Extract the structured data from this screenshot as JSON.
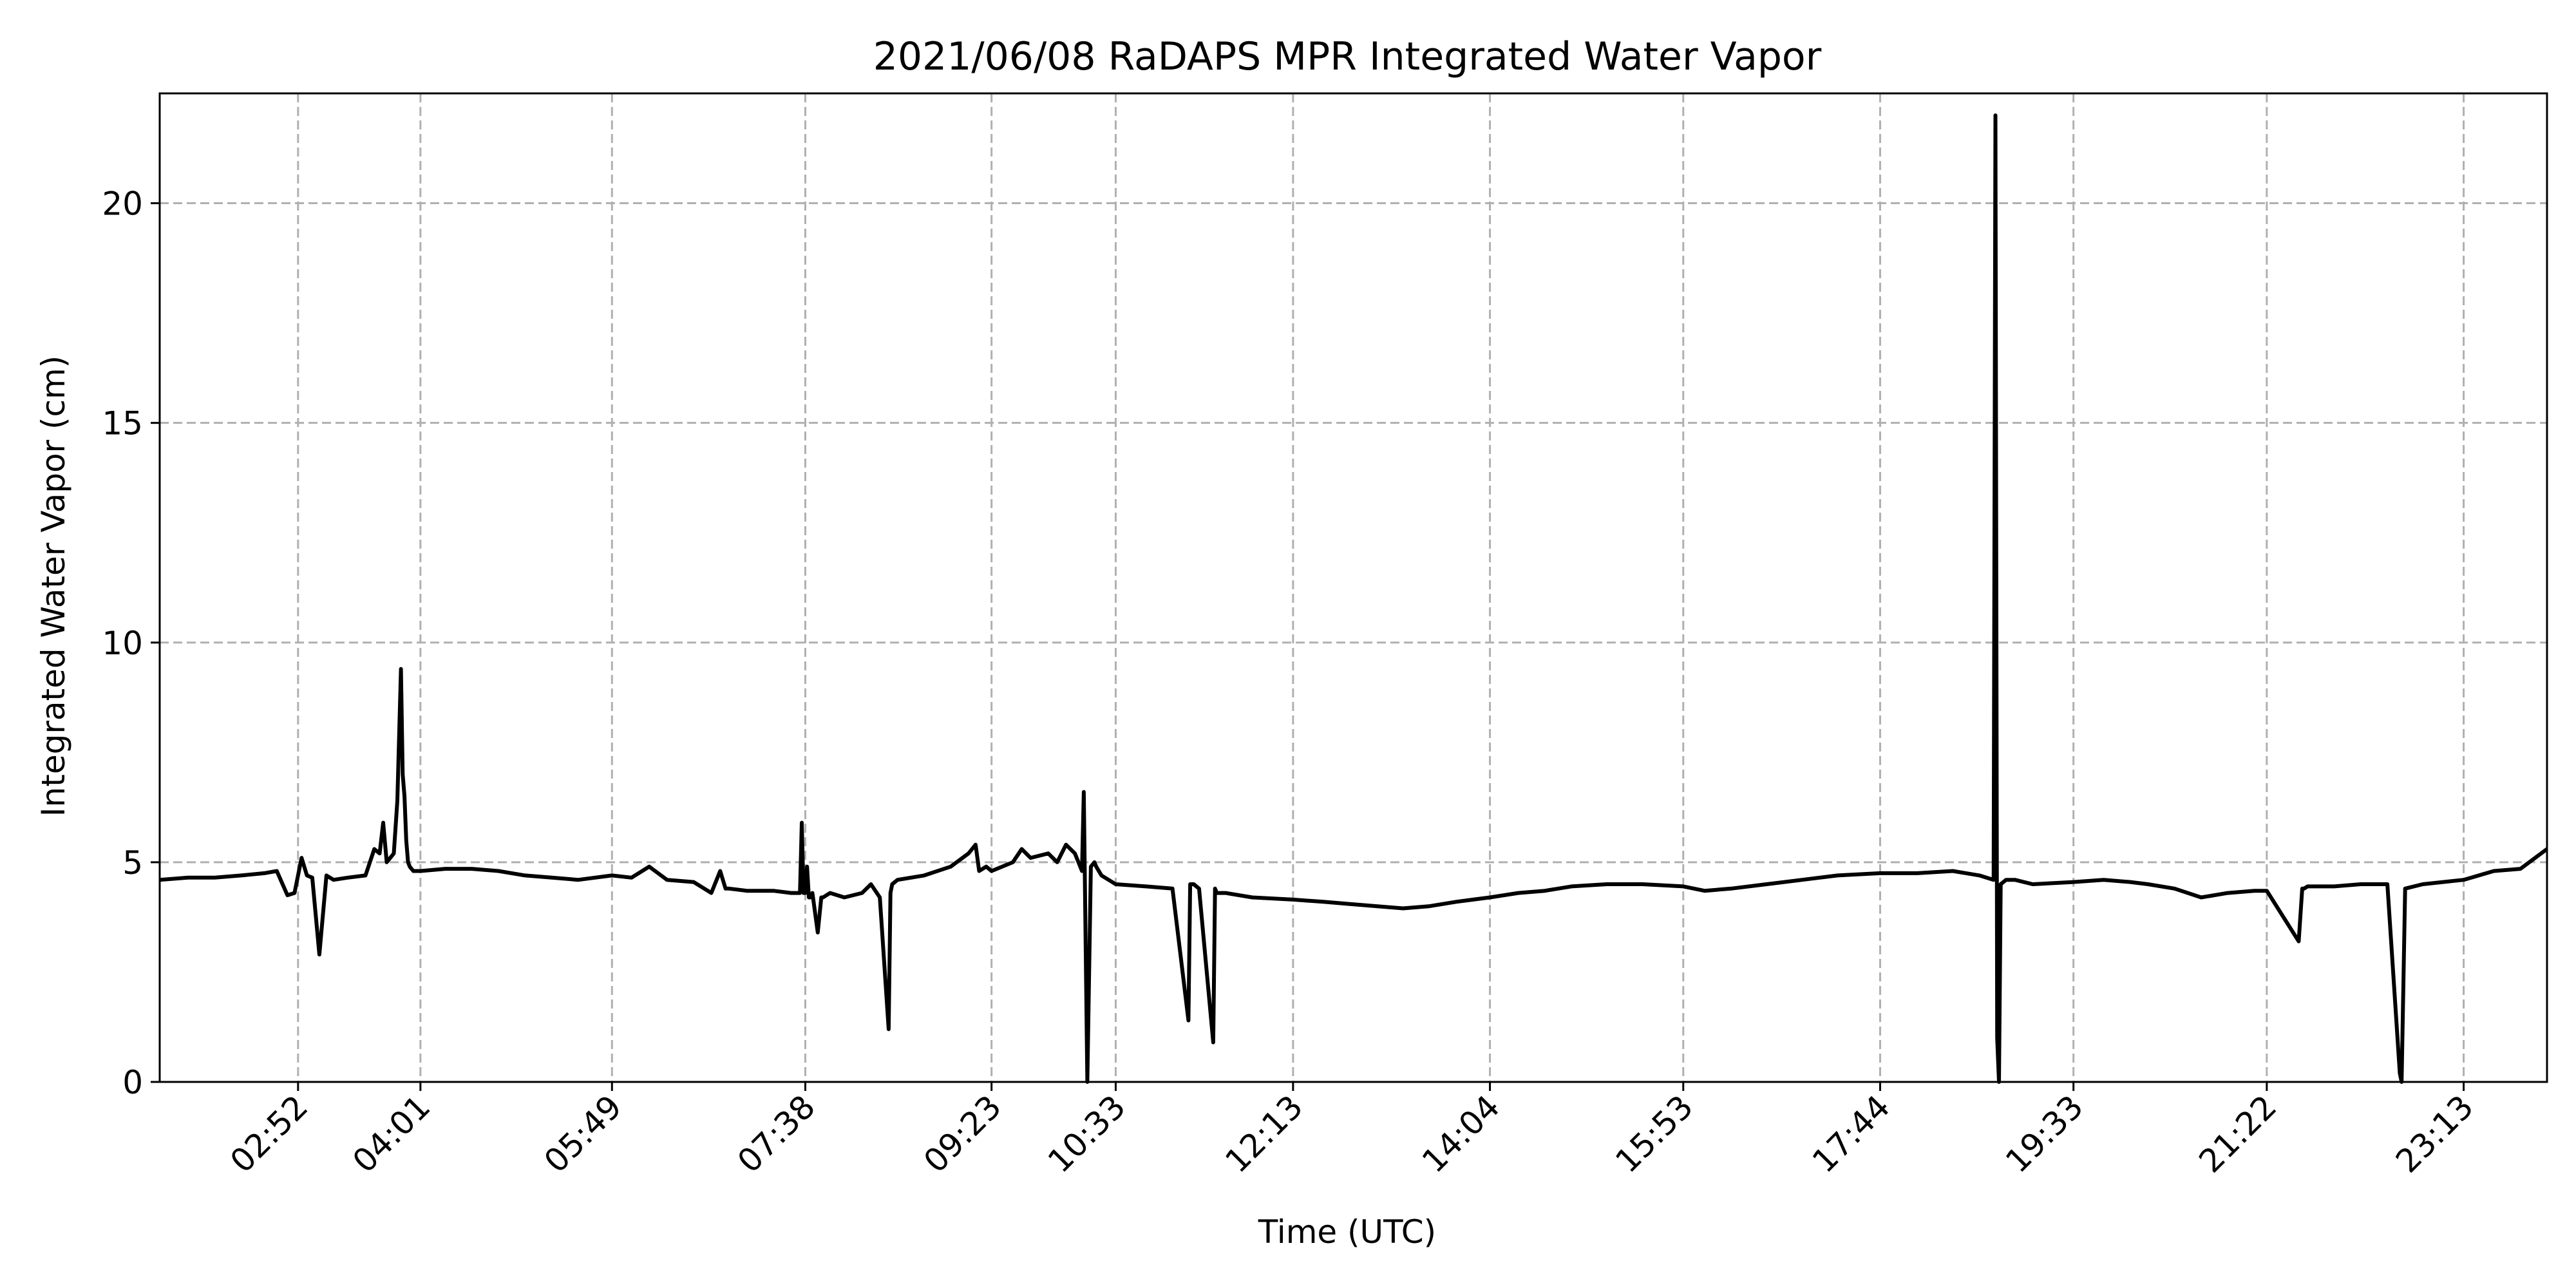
{
  "chart_data": {
    "type": "line",
    "title": "2021/06/08 RaDAPS MPR Integrated Water Vapor",
    "xlabel": "Time (UTC)",
    "ylabel": "Integrated Water Vapor (cm)",
    "xlim": [
      "01:34",
      "24:00"
    ],
    "ylim": [
      0,
      22.5
    ],
    "grid": true,
    "legend": "none",
    "line_color": "#000000",
    "x_ticks": [
      "02:52",
      "04:01",
      "05:49",
      "07:38",
      "09:23",
      "10:33",
      "12:13",
      "14:04",
      "15:53",
      "17:44",
      "19:33",
      "21:22",
      "23:13"
    ],
    "y_ticks": [
      0,
      5,
      10,
      15,
      20
    ],
    "series": [
      {
        "x": [
          "01:34",
          "01:50",
          "02:05",
          "02:20",
          "02:33",
          "02:40",
          "02:46",
          "02:50",
          "02:54",
          "02:57",
          "03:00",
          "03:04",
          "03:08",
          "03:12",
          "03:20",
          "03:30",
          "03:35",
          "03:38",
          "03:40",
          "03:42",
          "03:46",
          "03:48",
          "03:50",
          "03:51",
          "03:52",
          "03:53",
          "03:54",
          "03:55",
          "03:57",
          "04:01",
          "04:15",
          "04:30",
          "04:45",
          "05:00",
          "05:15",
          "05:30",
          "05:49",
          "06:00",
          "06:10",
          "06:20",
          "06:35",
          "06:45",
          "06:50",
          "06:53",
          "06:55",
          "07:05",
          "07:20",
          "07:30",
          "07:35",
          "07:36",
          "07:37",
          "07:38",
          "07:39",
          "07:40",
          "07:41",
          "07:42",
          "07:45",
          "07:47",
          "07:48",
          "07:52",
          "08:00",
          "08:10",
          "08:15",
          "08:20",
          "08:25",
          "08:26",
          "08:27",
          "08:30",
          "08:45",
          "09:00",
          "09:10",
          "09:14",
          "09:16",
          "09:18",
          "09:20",
          "09:23",
          "09:35",
          "09:40",
          "09:45",
          "09:55",
          "10:00",
          "10:05",
          "10:10",
          "10:14",
          "10:15",
          "10:17",
          "10:19",
          "10:21",
          "10:22",
          "10:25",
          "10:33",
          "10:50",
          "11:05",
          "11:14",
          "11:15",
          "11:17",
          "11:20",
          "11:28",
          "11:29",
          "11:30",
          "11:35",
          "11:50",
          "12:13",
          "12:30",
          "12:45",
          "13:00",
          "13:15",
          "13:30",
          "13:45",
          "14:04",
          "14:20",
          "14:35",
          "14:50",
          "15:10",
          "15:30",
          "15:53",
          "16:05",
          "16:20",
          "16:40",
          "17:00",
          "17:20",
          "17:44",
          "18:05",
          "18:25",
          "18:40",
          "18:48",
          "18:49",
          "18:50",
          "18:51",
          "18:52",
          "18:55",
          "19:00",
          "19:10",
          "19:33",
          "19:50",
          "20:05",
          "20:15",
          "20:30",
          "20:45",
          "21:00",
          "21:15",
          "21:22",
          "21:40",
          "21:42",
          "21:43",
          "21:45",
          "22:00",
          "22:15",
          "22:30",
          "22:37",
          "22:38",
          "22:40",
          "22:50",
          "23:13",
          "23:30",
          "23:45",
          "24:00"
        ],
        "y": [
          4.6,
          4.65,
          4.65,
          4.7,
          4.75,
          4.8,
          4.25,
          4.3,
          5.1,
          4.7,
          4.65,
          2.9,
          4.7,
          4.6,
          4.65,
          4.7,
          5.3,
          5.2,
          5.9,
          5.0,
          5.2,
          6.4,
          9.4,
          7.0,
          6.5,
          5.5,
          5.0,
          4.9,
          4.8,
          4.8,
          4.85,
          4.85,
          4.8,
          4.7,
          4.65,
          4.6,
          4.7,
          4.65,
          4.9,
          4.6,
          4.55,
          4.3,
          4.8,
          4.4,
          4.4,
          4.35,
          4.35,
          4.3,
          4.3,
          5.9,
          4.3,
          4.3,
          4.9,
          4.2,
          4.2,
          4.3,
          3.4,
          4.2,
          4.2,
          4.3,
          4.2,
          4.3,
          4.5,
          4.2,
          1.2,
          4.3,
          4.5,
          4.6,
          4.7,
          4.9,
          5.2,
          5.4,
          4.8,
          4.85,
          4.9,
          4.8,
          5.0,
          5.3,
          5.1,
          5.2,
          5.0,
          5.4,
          5.2,
          4.8,
          6.6,
          0.0,
          4.9,
          5.0,
          4.9,
          4.7,
          4.5,
          4.45,
          4.4,
          1.4,
          4.5,
          4.5,
          4.4,
          0.9,
          4.4,
          4.3,
          4.3,
          4.2,
          4.15,
          4.1,
          4.05,
          4.0,
          3.95,
          4.0,
          4.1,
          4.2,
          4.3,
          4.35,
          4.45,
          4.5,
          4.5,
          4.45,
          4.35,
          4.4,
          4.5,
          4.6,
          4.7,
          4.75,
          4.75,
          4.8,
          4.7,
          4.6,
          22.0,
          1.0,
          0.0,
          4.5,
          4.6,
          4.6,
          4.5,
          4.55,
          4.6,
          4.55,
          4.5,
          4.4,
          4.2,
          4.3,
          4.35,
          4.35,
          3.2,
          4.4,
          4.4,
          4.45,
          4.45,
          4.5,
          4.5,
          0.2,
          0.0,
          4.4,
          4.5,
          4.6,
          4.8,
          4.85,
          5.3
        ]
      }
    ]
  }
}
